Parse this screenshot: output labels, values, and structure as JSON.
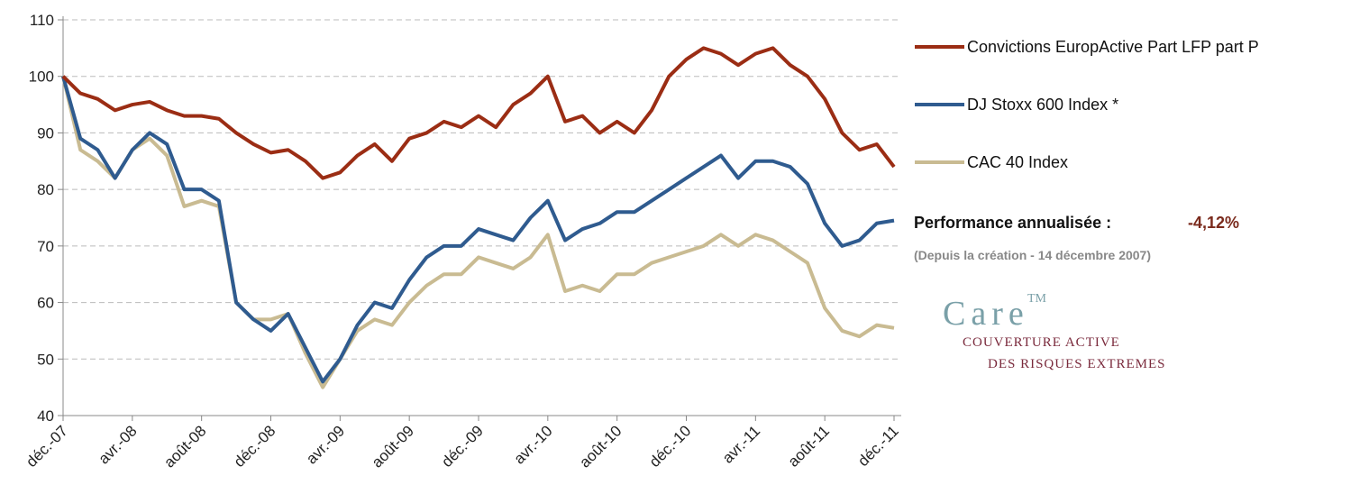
{
  "chart_data": {
    "type": "line",
    "categories": [
      "déc.-07",
      null,
      null,
      null,
      "avr.-08",
      null,
      null,
      null,
      "août-08",
      null,
      null,
      null,
      "déc.-08",
      null,
      null,
      null,
      "avr.-09",
      null,
      null,
      null,
      "août-09",
      null,
      null,
      null,
      "déc.-09",
      null,
      null,
      null,
      "avr.-10",
      null,
      null,
      null,
      "août-10",
      null,
      null,
      null,
      "déc.-10",
      null,
      null,
      null,
      "avr.-11",
      null,
      null,
      null,
      "août-11",
      null,
      null,
      null,
      "déc.-11"
    ],
    "series": [
      {
        "name": "Convictions EuropActive Part LFP part P",
        "color": "#9b2d14",
        "values": [
          100,
          97,
          96,
          94,
          95,
          95.5,
          94,
          93,
          93,
          92.5,
          90,
          88,
          86.5,
          87,
          85,
          82,
          83,
          86,
          88,
          85,
          89,
          90,
          92,
          91,
          93,
          91,
          95,
          97,
          100,
          92,
          93,
          90,
          92,
          90,
          94,
          100,
          103,
          105,
          104,
          102,
          104,
          105,
          102,
          100,
          96,
          90,
          87,
          88,
          84
        ]
      },
      {
        "name": "DJ Stoxx 600 Index *",
        "color": "#2f5b8f",
        "values": [
          100,
          89,
          87,
          82,
          87,
          90,
          88,
          80,
          80,
          78,
          60,
          57,
          55,
          58,
          52,
          46,
          50,
          56,
          60,
          59,
          64,
          68,
          70,
          70,
          73,
          72,
          71,
          75,
          78,
          71,
          73,
          74,
          76,
          76,
          78,
          80,
          82,
          84,
          86,
          82,
          85,
          85,
          84,
          81,
          74,
          70,
          71,
          74,
          74.5
        ]
      },
      {
        "name": "CAC 40 Index",
        "color": "#c9bb92",
        "values": [
          100,
          87,
          85,
          82,
          87,
          89,
          86,
          77,
          78,
          77,
          60,
          57,
          57,
          58,
          51,
          45,
          50,
          55,
          57,
          56,
          60,
          63,
          65,
          65,
          68,
          67,
          66,
          68,
          72,
          62,
          63,
          62,
          65,
          65,
          67,
          68,
          69,
          70,
          72,
          70,
          72,
          71,
          69,
          67,
          59,
          55,
          54,
          56,
          55.5
        ]
      }
    ],
    "ylim": [
      40,
      110
    ],
    "yticks": [
      40,
      50,
      60,
      70,
      80,
      90,
      100,
      110
    ],
    "grid": true
  },
  "performance": {
    "label": "Performance annualisée :",
    "value": "-4,12%",
    "note": "(Depuis la création - 14 décembre 2007)"
  },
  "logo": {
    "name": "Care",
    "mark": "TM",
    "line1": "COUVERTURE ACTIVE",
    "line2": "DES RISQUES EXTREMES"
  }
}
